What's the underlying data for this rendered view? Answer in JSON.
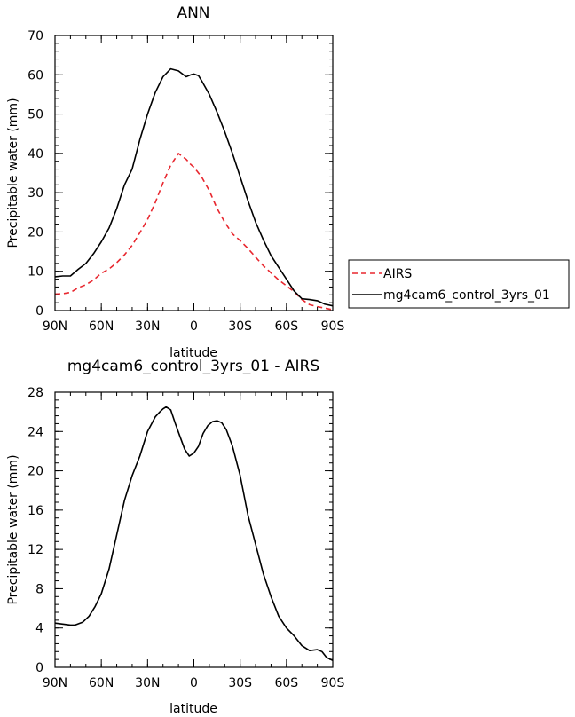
{
  "chart_data": [
    {
      "type": "line",
      "title": "ANN",
      "xlabel": "latitude",
      "ylabel": "Precipitable water (mm)",
      "x_tick_labels": [
        "90N",
        "60N",
        "30N",
        "0",
        "30S",
        "60S",
        "90S"
      ],
      "x_ticks": [
        90,
        60,
        30,
        0,
        -30,
        -60,
        -90
      ],
      "xlim": [
        90,
        -90
      ],
      "y_ticks": [
        0,
        10,
        20,
        30,
        40,
        50,
        60,
        70
      ],
      "ylim": [
        0,
        70
      ],
      "legend_position": "right",
      "series": [
        {
          "name": "AIRS",
          "color": "#e8272f",
          "dash": "dashed",
          "x": [
            90,
            85,
            80,
            75,
            70,
            65,
            60,
            55,
            50,
            45,
            40,
            35,
            30,
            25,
            20,
            15,
            10,
            5,
            2,
            0,
            -5,
            -10,
            -15,
            -20,
            -25,
            -30,
            -35,
            -40,
            -45,
            -50,
            -55,
            -60,
            -65,
            -70,
            -75,
            -80,
            -85,
            -90
          ],
          "y": [
            4.2,
            4.3,
            4.6,
            5.8,
            6.6,
            7.8,
            9.5,
            10.6,
            12.2,
            14.2,
            16.6,
            19.8,
            23.2,
            27.5,
            32.5,
            37.0,
            40.0,
            38.5,
            37.2,
            36.5,
            34.0,
            30.5,
            26.0,
            22.5,
            19.5,
            17.8,
            15.8,
            13.6,
            11.4,
            9.6,
            7.8,
            6.3,
            4.8,
            2.8,
            1.5,
            1.0,
            0.6,
            0.2
          ]
        },
        {
          "name": "mg4cam6_control_3yrs_01",
          "color": "#000000",
          "dash": "solid",
          "x": [
            90,
            85,
            80,
            75,
            70,
            65,
            60,
            55,
            50,
            45,
            40,
            35,
            30,
            25,
            20,
            15,
            10,
            5,
            2,
            0,
            -3,
            -5,
            -10,
            -15,
            -20,
            -25,
            -30,
            -35,
            -40,
            -45,
            -50,
            -55,
            -60,
            -65,
            -70,
            -75,
            -80,
            -85,
            -90
          ],
          "y": [
            8.6,
            8.8,
            8.8,
            10.5,
            12.0,
            14.5,
            17.5,
            21.0,
            26.0,
            32.0,
            36.0,
            43.5,
            50.0,
            55.5,
            59.5,
            61.5,
            61.0,
            59.5,
            60.0,
            60.2,
            59.8,
            58.5,
            55.0,
            50.5,
            45.5,
            40.0,
            34.0,
            28.0,
            22.5,
            18.0,
            14.0,
            11.0,
            8.0,
            5.0,
            3.0,
            2.8,
            2.5,
            1.6,
            1.2
          ]
        }
      ]
    },
    {
      "type": "line",
      "title": "mg4cam6_control_3yrs_01 - AIRS",
      "xlabel": "latitude",
      "ylabel": "Precipitable water (mm)",
      "x_tick_labels": [
        "90N",
        "60N",
        "30N",
        "0",
        "30S",
        "60S",
        "90S"
      ],
      "x_ticks": [
        90,
        60,
        30,
        0,
        -30,
        -60,
        -90
      ],
      "xlim": [
        90,
        -90
      ],
      "y_ticks": [
        0,
        4,
        8,
        12,
        16,
        20,
        24,
        28
      ],
      "ylim": [
        0,
        28
      ],
      "series": [
        {
          "color": "#000000",
          "dash": "solid",
          "x": [
            90,
            85,
            80,
            77,
            72,
            68,
            64,
            60,
            55,
            50,
            45,
            40,
            35,
            30,
            25,
            22,
            20,
            18,
            15,
            12,
            9,
            6,
            3,
            0,
            -3,
            -6,
            -9,
            -12,
            -15,
            -18,
            -21,
            -25,
            -30,
            -35,
            -40,
            -45,
            -50,
            -55,
            -60,
            -65,
            -70,
            -75,
            -80,
            -83,
            -86,
            -90
          ],
          "y": [
            4.5,
            4.4,
            4.3,
            4.3,
            4.6,
            5.2,
            6.2,
            7.5,
            10.0,
            13.5,
            17.0,
            19.5,
            21.5,
            24.0,
            25.5,
            26.0,
            26.3,
            26.5,
            26.2,
            24.8,
            23.5,
            22.2,
            21.5,
            21.8,
            22.5,
            23.8,
            24.6,
            25.0,
            25.1,
            24.9,
            24.2,
            22.5,
            19.5,
            15.5,
            12.5,
            9.5,
            7.2,
            5.2,
            4.0,
            3.2,
            2.2,
            1.7,
            1.8,
            1.6,
            1.0,
            0.7
          ]
        }
      ]
    }
  ]
}
